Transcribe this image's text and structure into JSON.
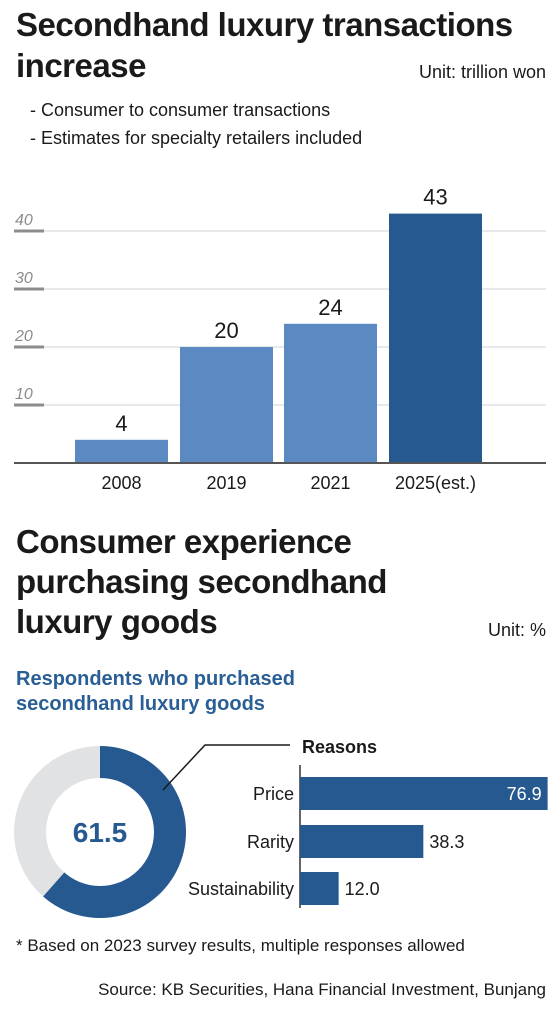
{
  "header": {
    "title": "Secondhand luxury transactions increase",
    "unit": "Unit: trillion won",
    "notes": [
      "- Consumer to consumer transactions",
      "- Estimates for specialty retailers included"
    ]
  },
  "chart_data": [
    {
      "type": "bar",
      "title": "Secondhand luxury transactions increase",
      "categories": [
        "2008",
        "2019",
        "2021",
        "2025(est.)"
      ],
      "values": [
        4,
        20,
        24,
        43
      ],
      "y_ticks": [
        10,
        20,
        30,
        40
      ],
      "ylim": [
        0,
        45
      ],
      "grid": true,
      "colors": [
        "#5b8ac3",
        "#5b8ac3",
        "#5b8ac3",
        "#265990"
      ]
    },
    {
      "type": "pie",
      "title": "Respondents who purchased secondhand luxury goods",
      "value": 61.5,
      "center_label": "61.5",
      "colors": {
        "filled": "#265990",
        "remainder": "#e1e2e4"
      }
    },
    {
      "type": "bar",
      "orientation": "horizontal",
      "title": "Reasons",
      "categories": [
        "Price",
        "Rarity",
        "Sustainability"
      ],
      "values": [
        76.9,
        38.3,
        12.0
      ],
      "value_labels": [
        "76.9",
        "38.3",
        "12.0"
      ],
      "color": "#265990"
    }
  ],
  "section2": {
    "title": "Consumer experience purchasing secondhand luxury goods",
    "unit": "Unit: %"
  },
  "footnote": "* Based on 2023 survey results, multiple responses allowed",
  "source": "Source: KB Securities, Hana Financial Investment, Bunjang"
}
